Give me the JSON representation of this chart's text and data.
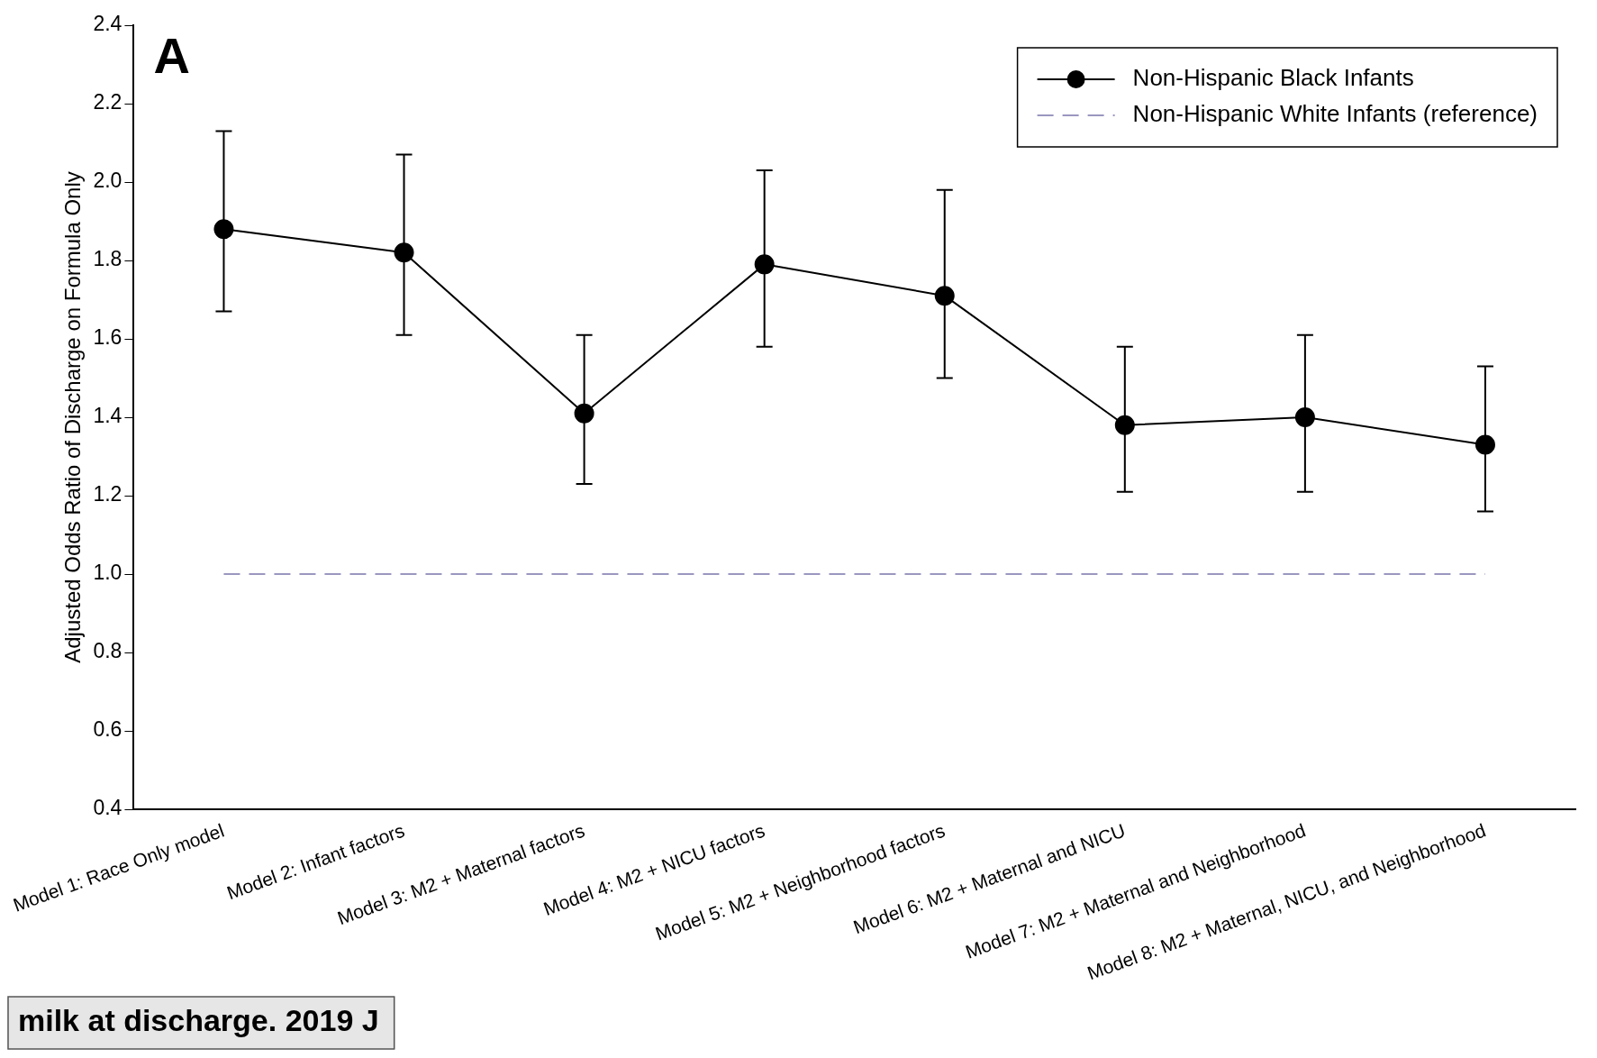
{
  "chart_data": {
    "type": "line",
    "ylabel": "Adjusted Odds Ratio of Discharge on Formula Only",
    "categories": [
      "Model 1: Race Only model",
      "Model 2: Infant factors",
      "Model 3: M2 + Maternal factors",
      "Model 4: M2 + NICU factors",
      "Model 5: M2 + Neighborhood factors",
      "Model 6: M2 + Maternal and NICU",
      "Model 7: M2 + Maternal and Neighborhood",
      "Model 8: M2 + Maternal, NICU, and Neighborhood"
    ],
    "series": [
      {
        "name": "Non-Hispanic Black Infants",
        "color": "#000000",
        "values": [
          1.88,
          1.82,
          1.41,
          1.79,
          1.71,
          1.38,
          1.4,
          1.33
        ],
        "errors": [
          [
            1.67,
            2.13
          ],
          [
            1.61,
            2.07
          ],
          [
            1.23,
            1.61
          ],
          [
            1.58,
            2.03
          ],
          [
            1.5,
            1.98
          ],
          [
            1.21,
            1.58
          ],
          [
            1.21,
            1.61
          ],
          [
            1.16,
            1.53
          ]
        ]
      }
    ],
    "ylim": [
      0.4,
      2.4
    ],
    "yticks": [
      0.4,
      0.6,
      0.8,
      {
        "value": 1,
        "label": "1.0"
      },
      1.2,
      1.4,
      1.6,
      1.8,
      {
        "value": 2,
        "label": "2.0"
      },
      2.2,
      2.4
    ],
    "ref_lines": [
      {
        "axis": "y",
        "value": 1,
        "label": "Non-Hispanic White Infants (reference)",
        "color": "#9a97c0",
        "line_style": "dashed"
      }
    ],
    "marker": "circle",
    "line_style": "solid",
    "legend": "top right",
    "grid": false,
    "annotations": [
      "A",
      "milk at discharge. 2019 J"
    ]
  }
}
